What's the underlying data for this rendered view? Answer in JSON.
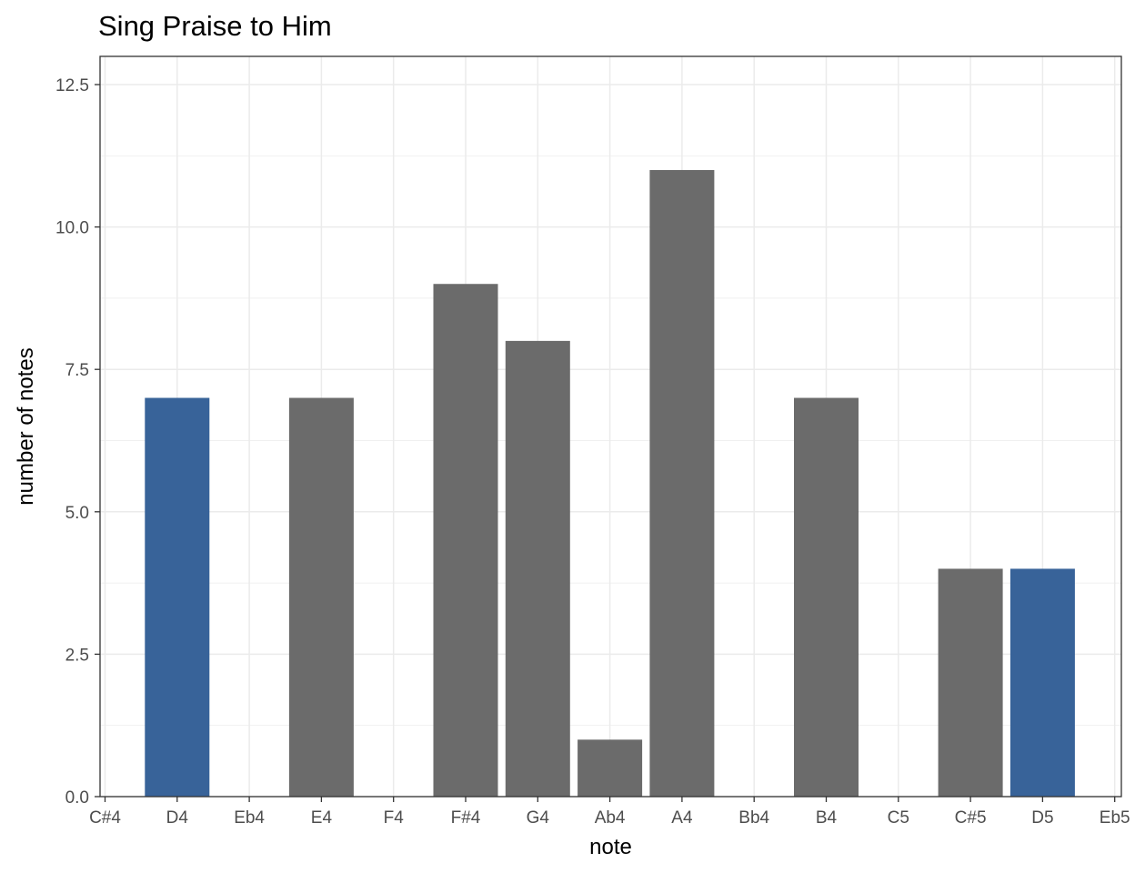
{
  "chart_data": {
    "type": "bar",
    "title": "Sing Praise to Him",
    "xlabel": "note",
    "ylabel": "number of notes",
    "categories": [
      "C#4",
      "D4",
      "Eb4",
      "E4",
      "F4",
      "F#4",
      "G4",
      "Ab4",
      "A4",
      "Bb4",
      "B4",
      "C5",
      "C#5",
      "D5",
      "Eb5"
    ],
    "values": [
      0,
      7,
      0,
      7,
      0,
      9,
      8,
      1,
      11,
      0,
      7,
      0,
      4,
      4,
      0
    ],
    "highlighted": [
      "D4",
      "D5"
    ],
    "ylim": [
      0,
      12.5
    ],
    "yticks": [
      "0.0",
      "2.5",
      "5.0",
      "7.5",
      "10.0",
      "12.5"
    ],
    "grid": true,
    "colors": {
      "bar": "#6b6b6b",
      "highlight": "#386399",
      "grid": "#ebebeb",
      "panel_border": "#333333"
    }
  }
}
